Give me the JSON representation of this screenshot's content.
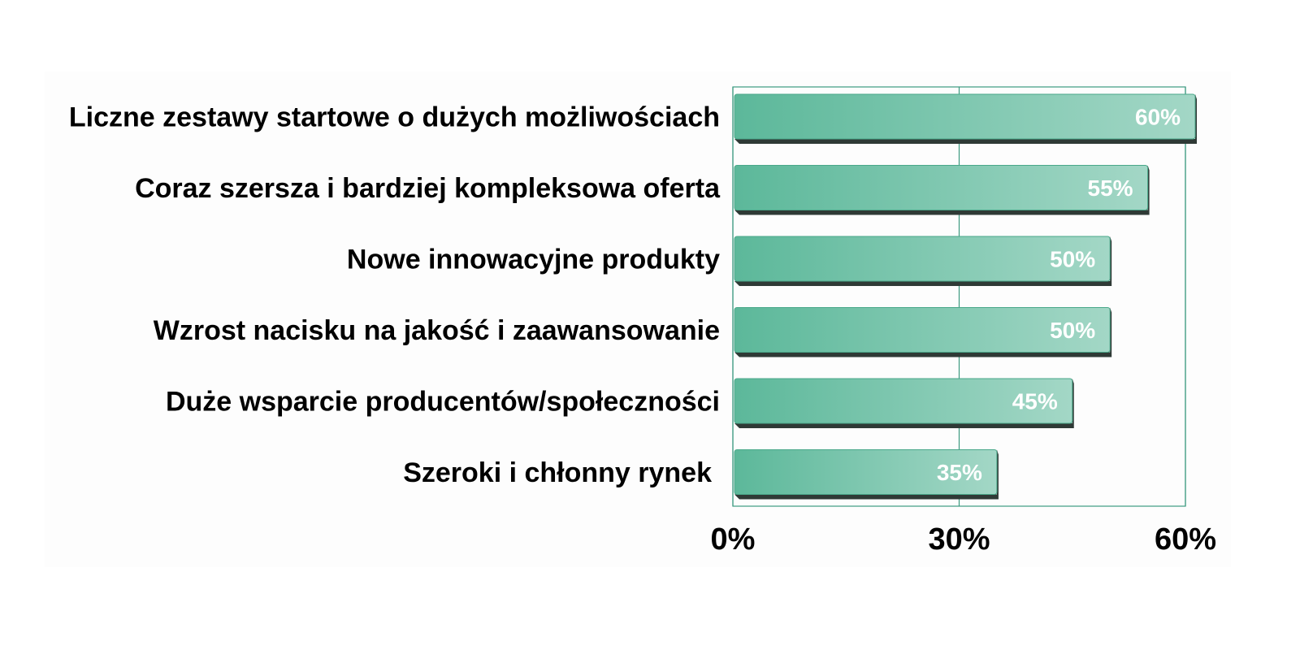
{
  "chart_data": {
    "type": "bar",
    "orientation": "horizontal",
    "categories": [
      "Liczne zestawy startowe o dużych możliwościach",
      "Coraz szersza i bardziej kompleksowa oferta",
      "Nowe innowacyjne produkty",
      "Wzrost nacisku na jakość i zaawansowanie",
      "Duże wsparcie producentów/społeczności",
      "Szeroki i chłonny rynek"
    ],
    "values": [
      60,
      55,
      50,
      50,
      45,
      35
    ],
    "value_labels": [
      "60%",
      "55%",
      "50%",
      "50%",
      "45%",
      "35%"
    ],
    "xlim": [
      0,
      60
    ],
    "xticks": [
      0,
      30,
      60
    ],
    "xtick_labels": [
      "0%",
      "30%",
      "60%"
    ],
    "grid": true,
    "legend": "none",
    "colors": {
      "bar_start": "#5cb89a",
      "bar_end": "#a3d7c6",
      "bar_shadow": "#2f3a36",
      "axis": "#3c9a80"
    }
  }
}
